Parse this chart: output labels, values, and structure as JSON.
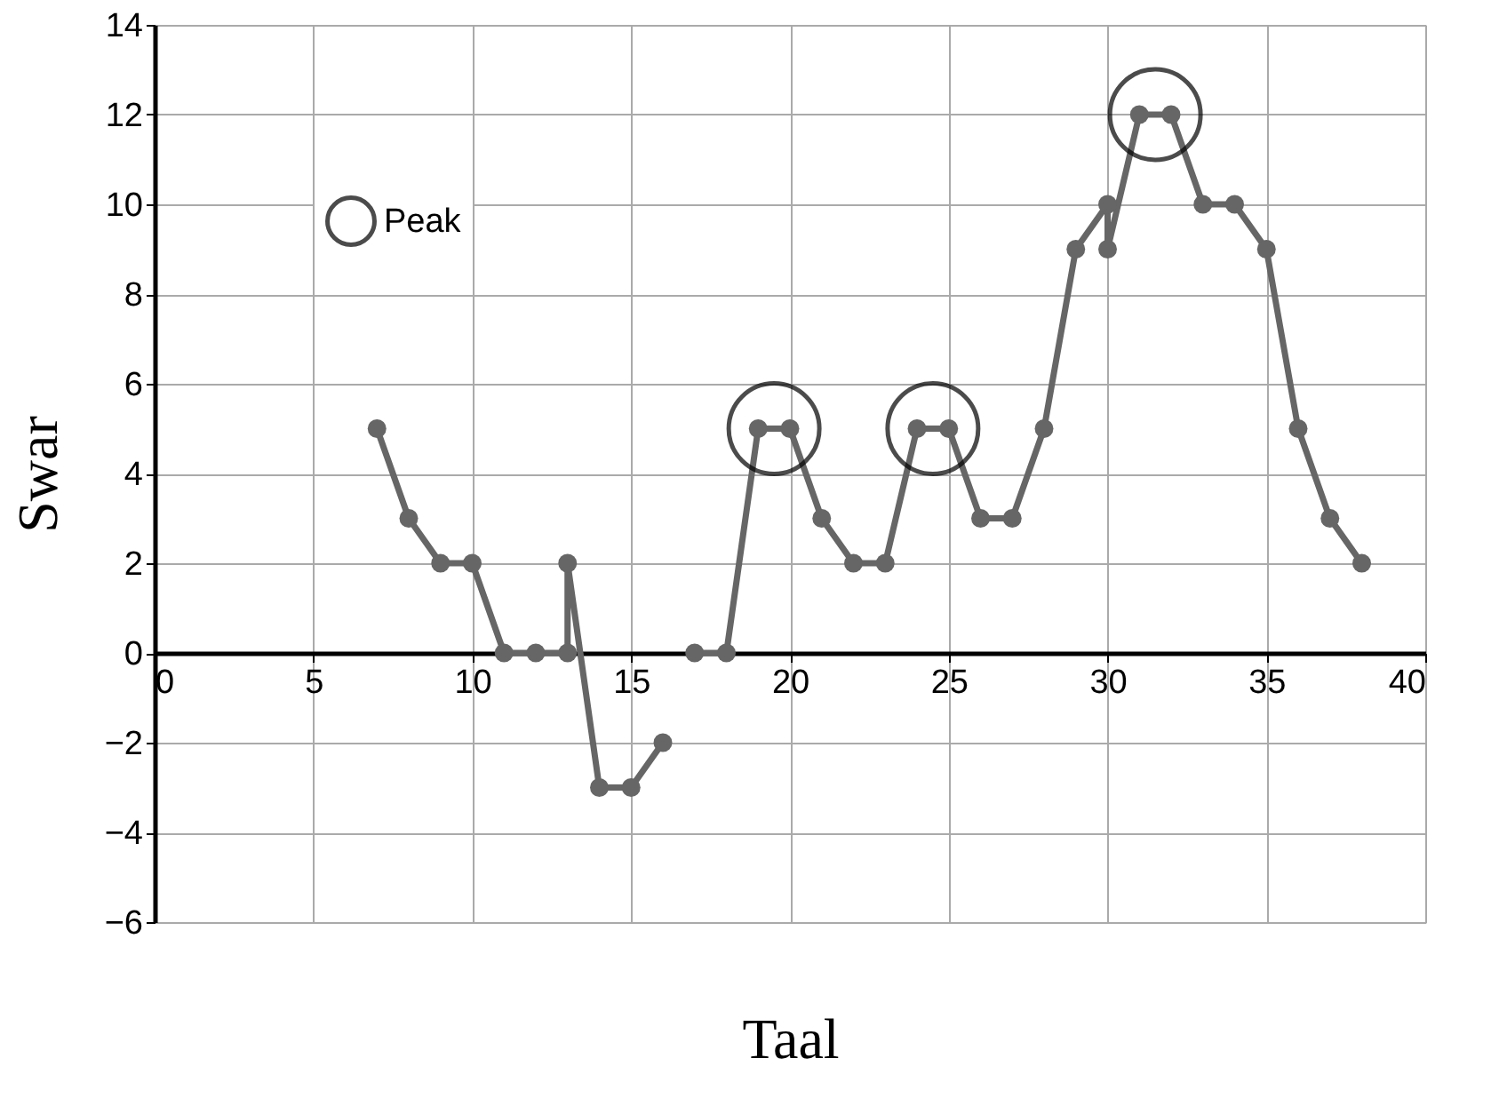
{
  "chart_data": {
    "type": "line",
    "xlabel": "Taal",
    "ylabel": "Swar",
    "xlim": [
      0,
      40
    ],
    "xticks": [
      0,
      5,
      10,
      15,
      20,
      25,
      30,
      35,
      40
    ],
    "ylim": [
      -6,
      14
    ],
    "yticks": [
      -6,
      -4,
      -2,
      0,
      2,
      4,
      6,
      8,
      10,
      12,
      14
    ],
    "grid": true,
    "marker": "circle",
    "line_style": "solid",
    "legend": "top left",
    "series": [
      {
        "color": "#666666",
        "x": [
          7,
          8,
          9,
          10,
          11,
          12,
          13,
          13,
          14,
          15,
          16,
          16.5,
          17,
          18,
          19,
          20,
          21,
          22,
          23,
          24,
          25,
          26,
          27,
          28,
          29,
          30,
          30,
          31,
          32,
          33,
          34,
          35,
          36,
          37,
          38
        ],
        "values": [
          5,
          3,
          2,
          2,
          0,
          0,
          0,
          2,
          -3,
          -3,
          -2,
          null,
          0,
          0,
          5,
          5,
          3,
          2,
          2,
          5,
          5,
          3,
          3,
          5,
          9,
          10,
          9,
          12,
          12,
          10,
          10,
          9,
          5,
          3,
          2
        ]
      },
      {
        "name": "Peak",
        "type": "scatter",
        "color": "#000000",
        "x": [
          19.5,
          24.5,
          31.5
        ],
        "values": [
          5,
          5,
          12
        ]
      }
    ]
  }
}
